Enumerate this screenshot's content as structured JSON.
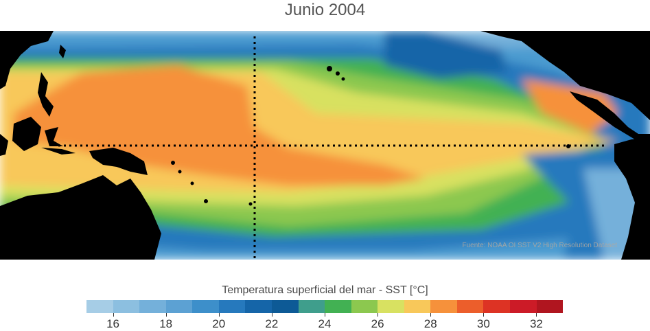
{
  "title": "Junio 2004",
  "source_note": "Fuente: NOAA OI SST V2 High Resolution Dataset",
  "colorbar": {
    "label": "Temperatura superficial del mar - SST  [°C]",
    "min": 15,
    "max": 33,
    "colors": [
      "#a6cde6",
      "#8cbfe0",
      "#74b0da",
      "#5ca1d3",
      "#3d8fca",
      "#2679bd",
      "#1565a8",
      "#0d5a96",
      "#3f9e8c",
      "#42b153",
      "#8cc84f",
      "#d8e161",
      "#f8c85a",
      "#f6913b",
      "#ec5e2b",
      "#dd3324",
      "#cc1b27",
      "#b0151f"
    ],
    "tick_values": [
      "16",
      "18",
      "20",
      "22",
      "24",
      "26",
      "28",
      "30",
      "32"
    ]
  },
  "map": {
    "land_color": "#000000",
    "dotted_lines": [
      "equator",
      "dateline"
    ]
  }
}
